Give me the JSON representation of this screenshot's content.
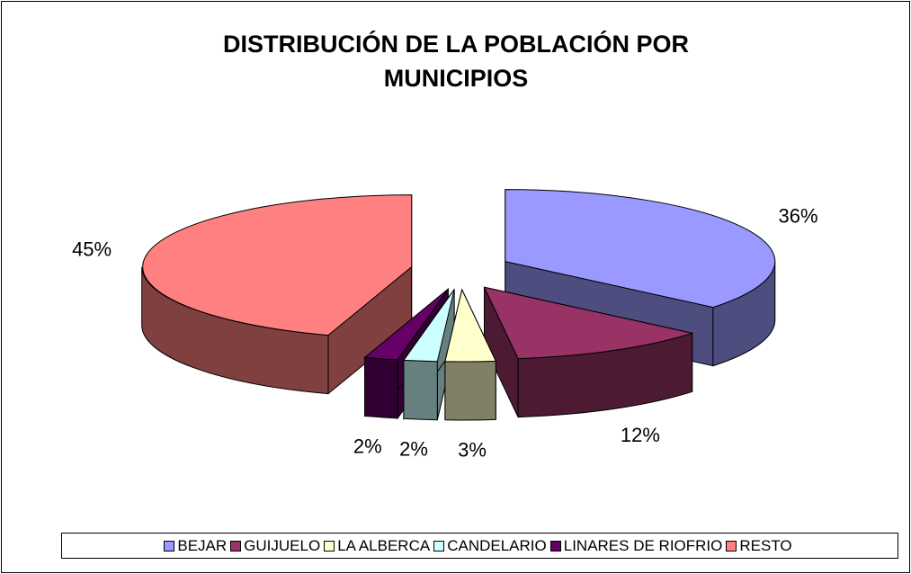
{
  "chart_data": {
    "type": "pie3d",
    "title": "DISTRIBUCIÓN DE LA POBLACIÓN POR MUNICIPIOS",
    "categories": [
      "BEJAR",
      "GUIJUELO",
      "LA ALBERCA",
      "CANDELARIO",
      "LINARES DE RIOFRIO",
      "RESTO"
    ],
    "values": [
      36,
      12,
      3,
      2,
      2,
      45
    ],
    "value_labels": [
      "36%",
      "12%",
      "3%",
      "2%",
      "2%",
      "45%"
    ],
    "colors": [
      "#9999ff",
      "#993366",
      "#ffffcc",
      "#ccffff",
      "#660066",
      "#ff8080"
    ],
    "legend": "bottom"
  }
}
